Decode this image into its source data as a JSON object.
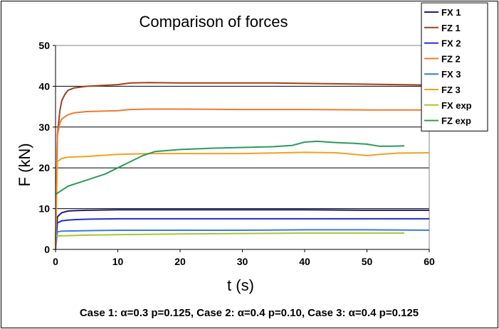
{
  "chart_data": {
    "type": "line",
    "title": "Comparison of forces",
    "xlabel": "t (s)",
    "ylabel": "F (kN)",
    "xlim": [
      0,
      60
    ],
    "ylim": [
      0,
      50
    ],
    "xticks": [
      "0",
      "10",
      "20",
      "30",
      "40",
      "50",
      "60"
    ],
    "yticks": [
      "0",
      "10",
      "20",
      "30",
      "40",
      "50"
    ],
    "grid": "horizontal",
    "legend_position": "top-right",
    "caption": "Case 1: α=0.3 p=0.125, Case 2: α=0.4 p=0.10, Case 3: α=0.4 p=0.125",
    "series": [
      {
        "name": "FX 1",
        "color": "#1f1f7a",
        "x": [
          0,
          0.3,
          1,
          2,
          3,
          5,
          10,
          20,
          30,
          40,
          50,
          60
        ],
        "y": [
          0,
          8.0,
          9.0,
          9.4,
          9.5,
          9.6,
          9.7,
          9.7,
          9.7,
          9.7,
          9.6,
          9.6
        ]
      },
      {
        "name": "FZ  1",
        "color": "#a0401a",
        "x": [
          0,
          0.3,
          0.7,
          1,
          1.5,
          2,
          3,
          5,
          10,
          12,
          15,
          20,
          30,
          35,
          40,
          50,
          60
        ],
        "y": [
          0,
          28.0,
          34.0,
          36.5,
          38.0,
          39.0,
          39.6,
          40.0,
          40.4,
          40.8,
          40.9,
          40.8,
          40.8,
          40.8,
          40.7,
          40.5,
          40.3
        ]
      },
      {
        "name": "FX 2",
        "color": "#2030c8",
        "x": [
          0,
          0.3,
          1,
          2,
          3,
          5,
          10,
          20,
          30,
          40,
          50,
          60
        ],
        "y": [
          0,
          6.5,
          7.0,
          7.2,
          7.3,
          7.4,
          7.5,
          7.5,
          7.5,
          7.5,
          7.5,
          7.5
        ]
      },
      {
        "name": "FZ  2",
        "color": "#f07a30",
        "x": [
          0,
          0.3,
          0.7,
          1,
          2,
          3,
          5,
          10,
          12,
          15,
          20,
          30,
          40,
          50,
          60
        ],
        "y": [
          0,
          28.0,
          31.0,
          32.0,
          33.0,
          33.5,
          33.8,
          34.0,
          34.3,
          34.4,
          34.4,
          34.3,
          34.3,
          34.2,
          34.2
        ]
      },
      {
        "name": "FX 3",
        "color": "#3a7ae0",
        "x": [
          0,
          0.3,
          1,
          5,
          10,
          20,
          30,
          40,
          50,
          60
        ],
        "y": [
          0,
          4.3,
          4.5,
          4.6,
          4.7,
          4.7,
          4.7,
          4.8,
          4.8,
          4.7
        ]
      },
      {
        "name": "FZ  3",
        "color": "#f5a020",
        "x": [
          0,
          0.3,
          1,
          2,
          5,
          10,
          15,
          20,
          30,
          40,
          45,
          48,
          50,
          52,
          55,
          60
        ],
        "y": [
          0,
          21.5,
          22.3,
          22.6,
          22.8,
          23.3,
          23.5,
          23.5,
          23.5,
          23.8,
          23.7,
          23.3,
          23.0,
          23.3,
          23.6,
          23.7
        ]
      },
      {
        "name": "FX exp",
        "color": "#a8c830",
        "x": [
          0,
          5,
          10,
          20,
          30,
          40,
          50,
          56
        ],
        "y": [
          3.3,
          3.5,
          3.6,
          3.8,
          3.9,
          4.0,
          4.0,
          4.0
        ]
      },
      {
        "name": "FZ exp",
        "color": "#2e9a5e",
        "x": [
          0,
          1,
          2,
          4,
          6,
          8,
          10,
          12,
          14,
          16,
          20,
          25,
          30,
          35,
          38,
          40,
          42,
          45,
          48,
          50,
          52,
          54,
          56
        ],
        "y": [
          13.5,
          14.5,
          15.5,
          16.5,
          17.5,
          18.5,
          20.0,
          21.5,
          23.0,
          24.0,
          24.5,
          24.8,
          25.0,
          25.2,
          25.5,
          26.3,
          26.5,
          26.2,
          26.0,
          25.8,
          25.3,
          25.3,
          25.4
        ]
      }
    ]
  }
}
